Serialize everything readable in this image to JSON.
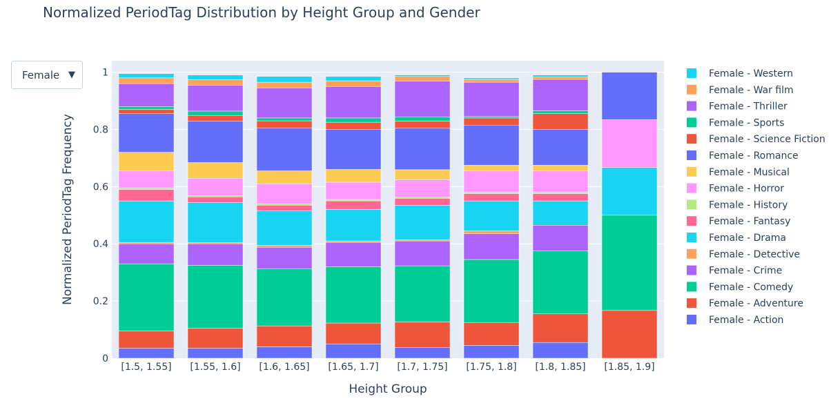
{
  "title": "Normalized PeriodTag Distribution by Height Group and Gender",
  "dropdown": {
    "selected": "Female",
    "arrow_icon": "triangle-down-icon"
  },
  "chart_data": {
    "type": "bar",
    "barmode": "stack",
    "title": "Normalized PeriodTag Distribution by Height Group and Gender",
    "xlabel": "Height Group",
    "ylabel": "Normalized PeriodTag Frequency",
    "ylim": [
      0,
      1.04
    ],
    "yticks": [
      0,
      0.2,
      0.4,
      0.6,
      0.8,
      1
    ],
    "ytick_labels": [
      "0",
      "0.2",
      "0.4",
      "0.6",
      "0.8",
      "1"
    ],
    "grid": true,
    "legend_position": "right",
    "categories": [
      "[1.5, 1.55]",
      "[1.55, 1.6]",
      "[1.6, 1.65]",
      "[1.65, 1.7]",
      "[1.7, 1.75]",
      "[1.75, 1.8]",
      "[1.8, 1.85]",
      "[1.85, 1.9]"
    ],
    "series": [
      {
        "name": "Female - Action",
        "color": "#636efa",
        "values": [
          0.035,
          0.035,
          0.04,
          0.05,
          0.037,
          0.045,
          0.055,
          0
        ]
      },
      {
        "name": "Female - Adventure",
        "color": "#ef553b",
        "values": [
          0.06,
          0.07,
          0.073,
          0.073,
          0.09,
          0.08,
          0.1,
          0.167
        ]
      },
      {
        "name": "Female - Comedy",
        "color": "#00cc96",
        "values": [
          0.235,
          0.22,
          0.2,
          0.197,
          0.196,
          0.22,
          0.22,
          0.333
        ]
      },
      {
        "name": "Female - Crime",
        "color": "#ab63fa",
        "values": [
          0.07,
          0.075,
          0.075,
          0.085,
          0.087,
          0.09,
          0.09,
          0
        ]
      },
      {
        "name": "Female - Detective",
        "color": "#ffa15a",
        "values": [
          0.005,
          0.004,
          0.007,
          0.005,
          0.004,
          0.01,
          0,
          0
        ]
      },
      {
        "name": "Female - Drama",
        "color": "#19d3f3",
        "values": [
          0.145,
          0.14,
          0.12,
          0.11,
          0.12,
          0.105,
          0.085,
          0.167
        ]
      },
      {
        "name": "Female - Fantasy",
        "color": "#ff6692",
        "values": [
          0.04,
          0.02,
          0.02,
          0.03,
          0.025,
          0.025,
          0.025,
          0
        ]
      },
      {
        "name": "Female - History",
        "color": "#b6e880",
        "values": [
          0.005,
          0.005,
          0.005,
          0.005,
          0.005,
          0.005,
          0.005,
          0
        ]
      },
      {
        "name": "Female - Horror",
        "color": "#ff97ff",
        "values": [
          0.06,
          0.06,
          0.07,
          0.06,
          0.06,
          0.075,
          0.075,
          0.167
        ]
      },
      {
        "name": "Female - Musical",
        "color": "#fecb52",
        "values": [
          0.065,
          0.055,
          0.045,
          0.045,
          0.035,
          0.02,
          0.02,
          0
        ]
      },
      {
        "name": "Female - Romance",
        "color": "#636efa",
        "values": [
          0.135,
          0.145,
          0.15,
          0.14,
          0.145,
          0.14,
          0.125,
          0.166
        ]
      },
      {
        "name": "Female - Science Fiction",
        "color": "#ef553b",
        "values": [
          0.015,
          0.02,
          0.025,
          0.025,
          0.025,
          0.025,
          0.055,
          0
        ]
      },
      {
        "name": "Female - Sports",
        "color": "#00cc96",
        "values": [
          0.01,
          0.015,
          0.01,
          0.015,
          0.015,
          0.005,
          0.01,
          0
        ]
      },
      {
        "name": "Female - Thriller",
        "color": "#ab63fa",
        "values": [
          0.08,
          0.09,
          0.105,
          0.11,
          0.125,
          0.12,
          0.11,
          0
        ]
      },
      {
        "name": "Female - War film",
        "color": "#ffa15a",
        "values": [
          0.02,
          0.02,
          0.02,
          0.02,
          0.016,
          0.01,
          0.008,
          0
        ]
      },
      {
        "name": "Female - Western",
        "color": "#19d3f3",
        "values": [
          0.015,
          0.016,
          0.02,
          0.015,
          0.005,
          0.005,
          0.007,
          0
        ]
      }
    ]
  }
}
